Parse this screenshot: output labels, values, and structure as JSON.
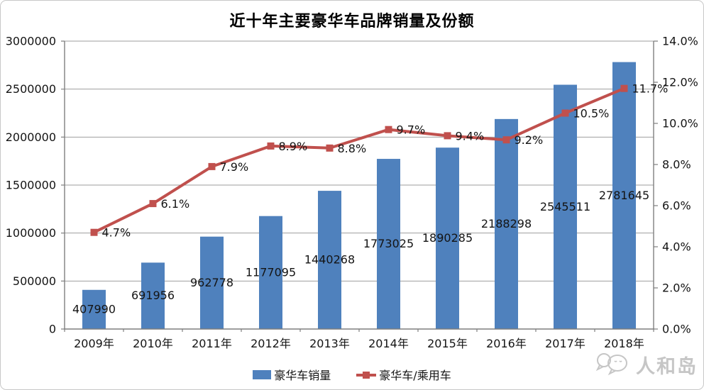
{
  "title": "近十年主要豪华车品牌销量及份额",
  "chart_data": {
    "type": "combo-bar-line",
    "title": "近十年主要豪华车品牌销量及份额",
    "categories": [
      "2009年",
      "2010年",
      "2011年",
      "2012年",
      "2013年",
      "2014年",
      "2015年",
      "2016年",
      "2017年",
      "2018年"
    ],
    "series": [
      {
        "name": "豪华车销量",
        "type": "bar",
        "axis": "left",
        "color": "#4F81BD",
        "values": [
          407990,
          691956,
          962778,
          1177095,
          1440268,
          1773025,
          1890285,
          2188298,
          2545511,
          2781645
        ],
        "data_labels": [
          "407990",
          "691956",
          "962778",
          "1177095",
          "1440268",
          "1773025",
          "1890285",
          "2188298",
          "2545511",
          "2781645"
        ]
      },
      {
        "name": "豪华车/乘用车",
        "type": "line",
        "axis": "right",
        "color": "#C0504D",
        "values": [
          4.7,
          6.1,
          7.9,
          8.9,
          8.8,
          9.7,
          9.4,
          9.2,
          10.5,
          11.7
        ],
        "data_labels": [
          "4.7%",
          "6.1%",
          "7.9%",
          "8.9%",
          "8.8%",
          "9.7%",
          "9.4%",
          "9.2%",
          "10.5%",
          "11.7%"
        ]
      }
    ],
    "left_axis": {
      "min": 0,
      "max": 3000000,
      "step": 500000,
      "tick_labels_top_down": [
        "3000000",
        "2500000",
        "2000000",
        "1500000",
        "1000000",
        "500000",
        "0"
      ]
    },
    "right_axis": {
      "min": 0,
      "max": 14,
      "step": 2,
      "tick_labels_top_down": [
        "14.0%",
        "12.0%",
        "10.0%",
        "8.0%",
        "6.0%",
        "4.0%",
        "2.0%",
        "0.0%"
      ]
    },
    "grid": true,
    "legend_position": "bottom"
  },
  "legend": {
    "items": [
      {
        "label": "豪华车销量",
        "swatch": "bar",
        "color": "#4F81BD"
      },
      {
        "label": "豪华车/乘用车",
        "swatch": "line-marker",
        "color": "#C0504D"
      }
    ]
  },
  "watermark": {
    "icon": "speech-bubbles-logo-icon",
    "text": "人和岛",
    "color": "#c6c6c6"
  },
  "colors": {
    "bar": "#4F81BD",
    "line": "#C0504D",
    "grid": "#9e9e9e",
    "axis": "#7f7f7f",
    "text": "#141414",
    "border": "#c8c8c8"
  }
}
